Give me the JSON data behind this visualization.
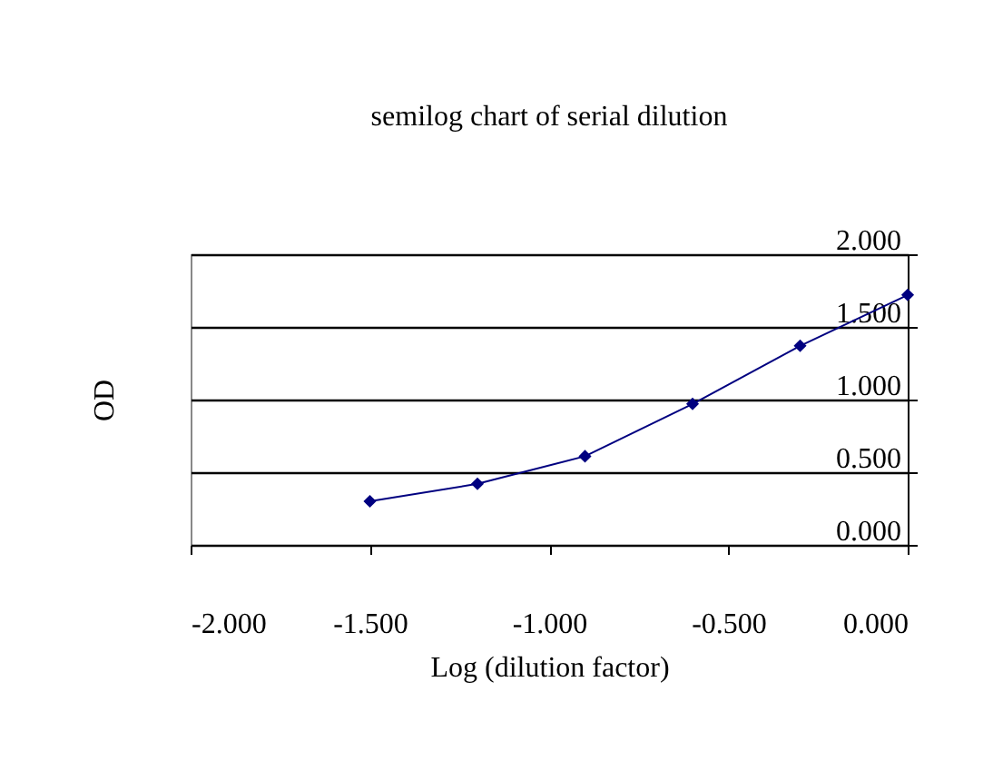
{
  "chart_data": {
    "type": "line",
    "title": "semilog chart of serial dilution",
    "xlabel": "Log (dilution factor)",
    "ylabel": "OD",
    "x": [
      -1.5,
      -1.2,
      -0.9,
      -0.6,
      -0.3,
      0.0
    ],
    "series": [
      {
        "color": "#000080",
        "values": [
          0.3,
          0.42,
          0.61,
          0.97,
          1.37,
          1.72
        ]
      }
    ],
    "xlim": [
      -2,
      0
    ],
    "xticks": [
      {
        "value": -2,
        "label": "-2.000"
      },
      {
        "value": -1.5,
        "label": "-1.500"
      },
      {
        "value": -1,
        "label": "-1.000"
      },
      {
        "value": -0.5,
        "label": "-0.500"
      },
      {
        "value": 0,
        "label": "0.000"
      }
    ],
    "ylim": [
      0,
      2
    ],
    "yticks": [
      {
        "value": 0,
        "label": "0.000"
      },
      {
        "value": 0.5,
        "label": "0.500"
      },
      {
        "value": 1,
        "label": "1.000"
      },
      {
        "value": 1.5,
        "label": "1.500"
      },
      {
        "value": 2,
        "label": "2.000"
      }
    ],
    "grid": "y",
    "marker": "diamond",
    "line_style": "solid"
  }
}
